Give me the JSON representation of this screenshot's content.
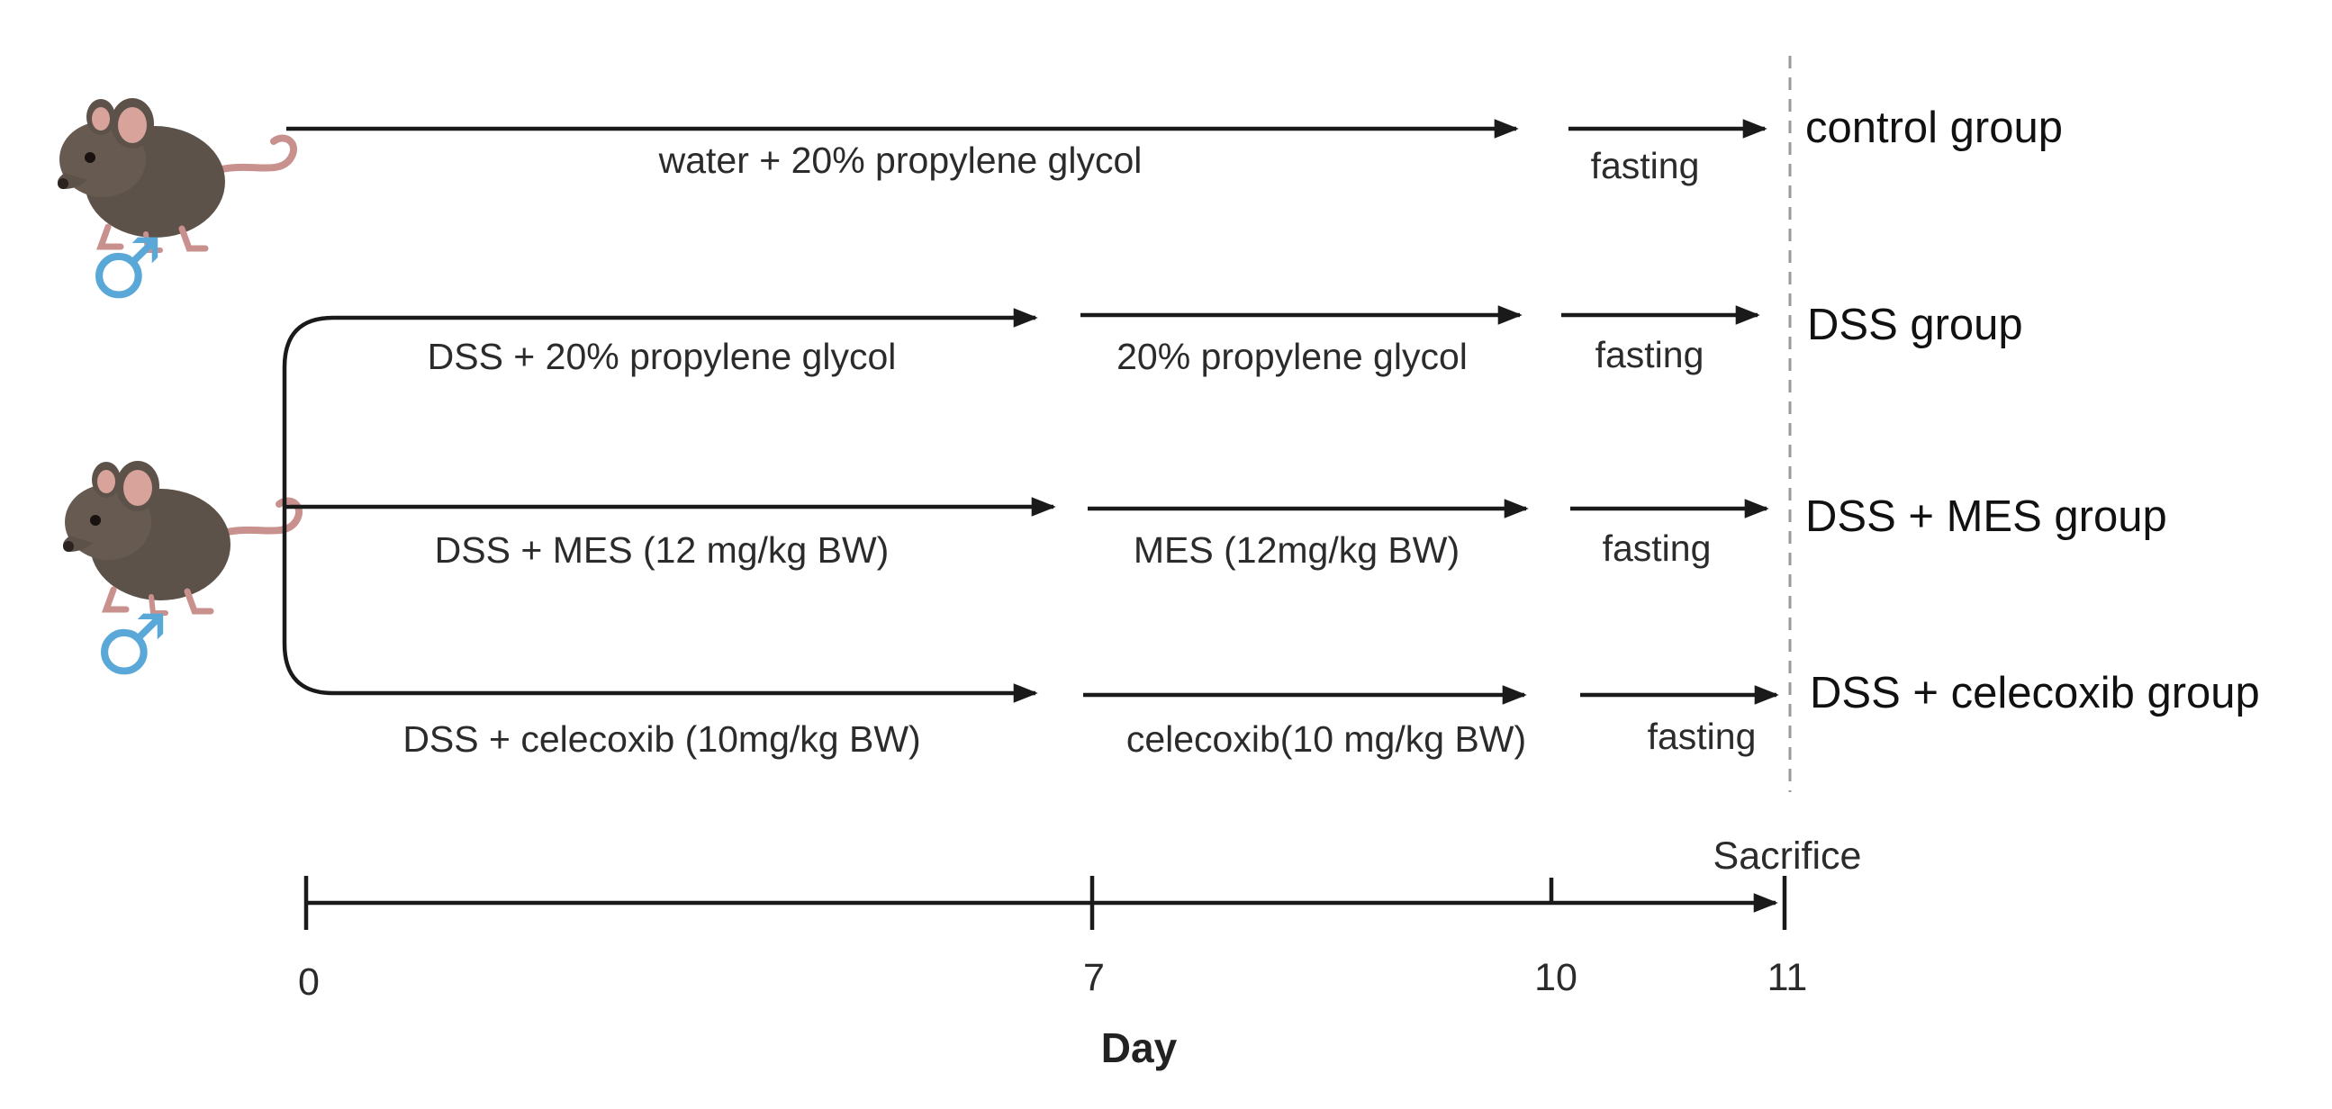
{
  "colors": {
    "line": "#1a1a1a",
    "mouse_body": "#5d5249",
    "mouse_ear": "#d7a39a",
    "male_symbol": "#5aa8d8",
    "dashed_line": "#9a9a9a"
  },
  "cohorts": [
    {
      "gender_symbol": "♂",
      "icon": "mouse-icon"
    },
    {
      "gender_symbol": "♂",
      "icon": "mouse-icon"
    }
  ],
  "rows": [
    {
      "group": "control group",
      "segment1": "water + 20% propylene glycol",
      "segment2": "",
      "fasting": "fasting"
    },
    {
      "group": "DSS group",
      "segment1": "DSS + 20% propylene glycol",
      "segment2": "20% propylene glycol",
      "fasting": "fasting"
    },
    {
      "group": "DSS + MES group",
      "segment1": "DSS  + MES (12 mg/kg BW)",
      "segment2": "MES (12mg/kg BW)",
      "fasting": "fasting"
    },
    {
      "group": "DSS + celecoxib group",
      "segment1": "DSS  + celecoxib (10mg/kg BW)",
      "segment2": "celecoxib(10 mg/kg BW)",
      "fasting": "fasting"
    }
  ],
  "timeline": {
    "ticks": [
      "0",
      "7",
      "10",
      "11"
    ],
    "axis_title": "Day",
    "endpoint_label": "Sacrifice"
  }
}
